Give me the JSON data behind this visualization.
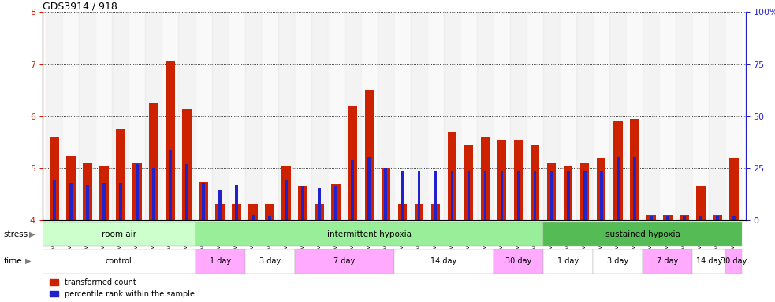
{
  "title": "GDS3914 / 918",
  "samples": [
    "GSM215660",
    "GSM215661",
    "GSM215662",
    "GSM215663",
    "GSM215664",
    "GSM215665",
    "GSM215666",
    "GSM215667",
    "GSM215668",
    "GSM215669",
    "GSM215670",
    "GSM215671",
    "GSM215672",
    "GSM215673",
    "GSM215674",
    "GSM215675",
    "GSM215676",
    "GSM215677",
    "GSM215678",
    "GSM215679",
    "GSM215680",
    "GSM215681",
    "GSM215682",
    "GSM215683",
    "GSM215684",
    "GSM215685",
    "GSM215686",
    "GSM215687",
    "GSM215688",
    "GSM215689",
    "GSM215690",
    "GSM215691",
    "GSM215692",
    "GSM215693",
    "GSM215694",
    "GSM215695",
    "GSM215696",
    "GSM215697",
    "GSM215698",
    "GSM215699",
    "GSM215700",
    "GSM215701"
  ],
  "red_values": [
    5.6,
    5.25,
    5.1,
    5.05,
    5.75,
    5.1,
    6.25,
    7.05,
    6.15,
    4.75,
    4.3,
    4.3,
    4.3,
    4.3,
    5.05,
    4.65,
    4.3,
    4.7,
    6.2,
    6.5,
    5.0,
    4.3,
    4.3,
    4.3,
    5.7,
    5.45,
    5.6,
    5.55,
    5.55,
    5.45,
    5.1,
    5.05,
    5.1,
    5.2,
    5.9,
    5.95,
    4.1,
    4.1,
    4.1,
    4.65,
    4.1,
    5.2
  ],
  "blue_values": [
    4.78,
    4.72,
    4.68,
    4.72,
    4.72,
    5.08,
    5.0,
    5.35,
    5.08,
    4.72,
    4.6,
    4.68,
    4.1,
    4.08,
    4.78,
    4.65,
    4.62,
    4.65,
    5.15,
    5.22,
    5.0,
    4.95,
    4.95,
    4.95,
    4.95,
    4.95,
    4.95,
    4.95,
    4.95,
    4.95,
    4.95,
    4.95,
    4.95,
    4.95,
    5.22,
    5.22,
    4.08,
    4.08,
    4.08,
    4.08,
    4.08,
    4.08
  ],
  "ylim": [
    4,
    8
  ],
  "yticks_left": [
    4,
    5,
    6,
    7,
    8
  ],
  "yticks_right": [
    0,
    25,
    50,
    75,
    100
  ],
  "stress_groups": [
    {
      "label": "room air",
      "start": 0,
      "end": 9,
      "color": "#ccffcc"
    },
    {
      "label": "intermittent hypoxia",
      "start": 9,
      "end": 30,
      "color": "#99ee99"
    },
    {
      "label": "sustained hypoxia",
      "start": 30,
      "end": 42,
      "color": "#55bb55"
    }
  ],
  "time_groups": [
    {
      "label": "control",
      "start": 0,
      "end": 9,
      "color": "#ffffff"
    },
    {
      "label": "1 day",
      "start": 9,
      "end": 12,
      "color": "#ffaaff"
    },
    {
      "label": "3 day",
      "start": 12,
      "end": 15,
      "color": "#ffffff"
    },
    {
      "label": "7 day",
      "start": 15,
      "end": 21,
      "color": "#ffaaff"
    },
    {
      "label": "14 day",
      "start": 21,
      "end": 27,
      "color": "#ffffff"
    },
    {
      "label": "30 day",
      "start": 27,
      "end": 30,
      "color": "#ffaaff"
    },
    {
      "label": "1 day",
      "start": 30,
      "end": 33,
      "color": "#ffffff"
    },
    {
      "label": "3 day",
      "start": 33,
      "end": 36,
      "color": "#ffffff"
    },
    {
      "label": "7 day",
      "start": 36,
      "end": 39,
      "color": "#ffaaff"
    },
    {
      "label": "14 day",
      "start": 39,
      "end": 41,
      "color": "#ffffff"
    },
    {
      "label": "30 day",
      "start": 41,
      "end": 42,
      "color": "#ffaaff"
    }
  ],
  "red_color": "#cc2200",
  "blue_color": "#2222cc",
  "bar_width": 0.55,
  "blue_bar_width": 0.18
}
